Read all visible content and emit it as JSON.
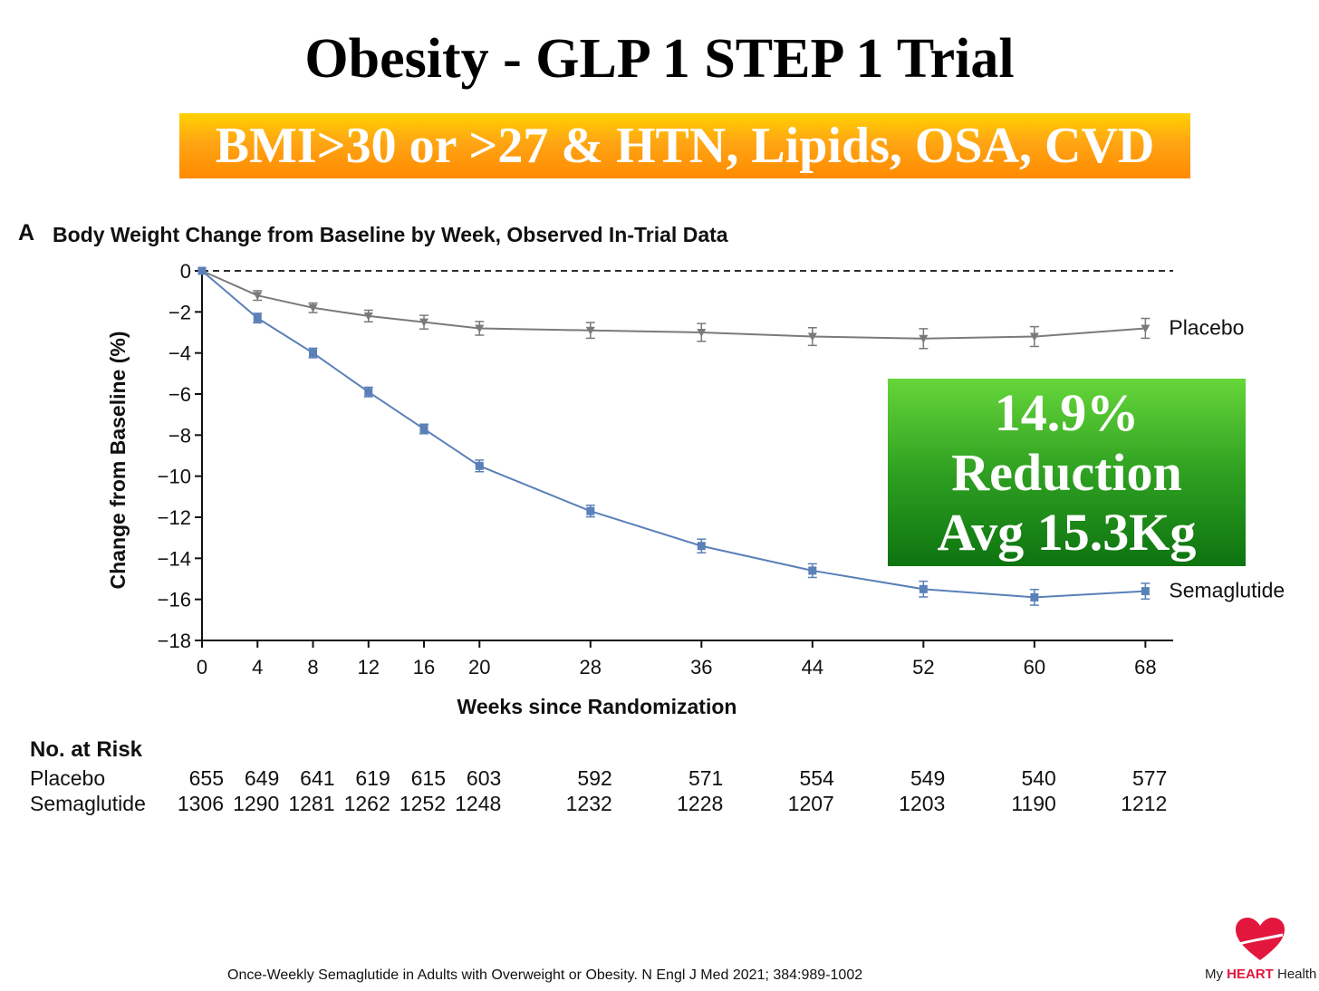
{
  "slide": {
    "title": "Obesity - GLP 1 STEP 1 Trial",
    "banner": "BMI>30 or >27 & HTN, Lipids, OSA, CVD",
    "panel_letter": "A",
    "panel_title": "Body Weight Change from Baseline by Week, Observed In-Trial Data",
    "callout": {
      "line1": "14.9%",
      "line2": "Reduction",
      "line3": "Avg 15.3Kg"
    },
    "citation": "Once-Weekly Semaglutide in Adults with Overweight or Obesity. N Engl J Med 2021; 384:989-1002",
    "logo": {
      "prefix": "My ",
      "heart": "HEART",
      "suffix": " Health"
    }
  },
  "chart_data": {
    "type": "line",
    "title": "Body Weight Change from Baseline by Week, Observed In-Trial Data",
    "xlabel": "Weeks since Randomization",
    "ylabel": "Change from Baseline (%)",
    "x": [
      0,
      4,
      8,
      12,
      16,
      20,
      28,
      36,
      44,
      52,
      60,
      68
    ],
    "xlim": [
      0,
      70
    ],
    "ylim": [
      -18,
      0
    ],
    "yticks": [
      0,
      -2,
      -4,
      -6,
      -8,
      -10,
      -12,
      -14,
      -16,
      -18
    ],
    "reference_line": 0,
    "series": [
      {
        "name": "Placebo",
        "color": "#7a7a7a",
        "values": [
          0,
          -1.2,
          -1.8,
          -2.2,
          -2.5,
          -2.8,
          -2.9,
          -3.0,
          -3.2,
          -3.3,
          -3.2,
          -2.8
        ],
        "err": [
          0,
          0.1,
          0.1,
          0.15,
          0.2,
          0.2,
          0.25,
          0.3,
          0.3,
          0.35,
          0.35,
          0.35
        ]
      },
      {
        "name": "Semaglutide",
        "color": "#5a80b8",
        "values": [
          0,
          -2.3,
          -4.0,
          -5.9,
          -7.7,
          -9.5,
          -11.7,
          -13.4,
          -14.6,
          -15.5,
          -15.9,
          -15.6
        ],
        "err": [
          0,
          0.1,
          0.1,
          0.1,
          0.1,
          0.15,
          0.15,
          0.2,
          0.2,
          0.25,
          0.25,
          0.25
        ]
      }
    ],
    "risk_table": {
      "title": "No. at Risk",
      "rows": [
        {
          "label": "Placebo",
          "values": [
            "655",
            "649",
            "641",
            "619",
            "615",
            "603",
            "592",
            "571",
            "554",
            "549",
            "540",
            "577"
          ]
        },
        {
          "label": "Semaglutide",
          "values": [
            "1306",
            "1290",
            "1281",
            "1262",
            "1252",
            "1248",
            "1232",
            "1228",
            "1207",
            "1203",
            "1190",
            "1212"
          ]
        }
      ]
    }
  }
}
